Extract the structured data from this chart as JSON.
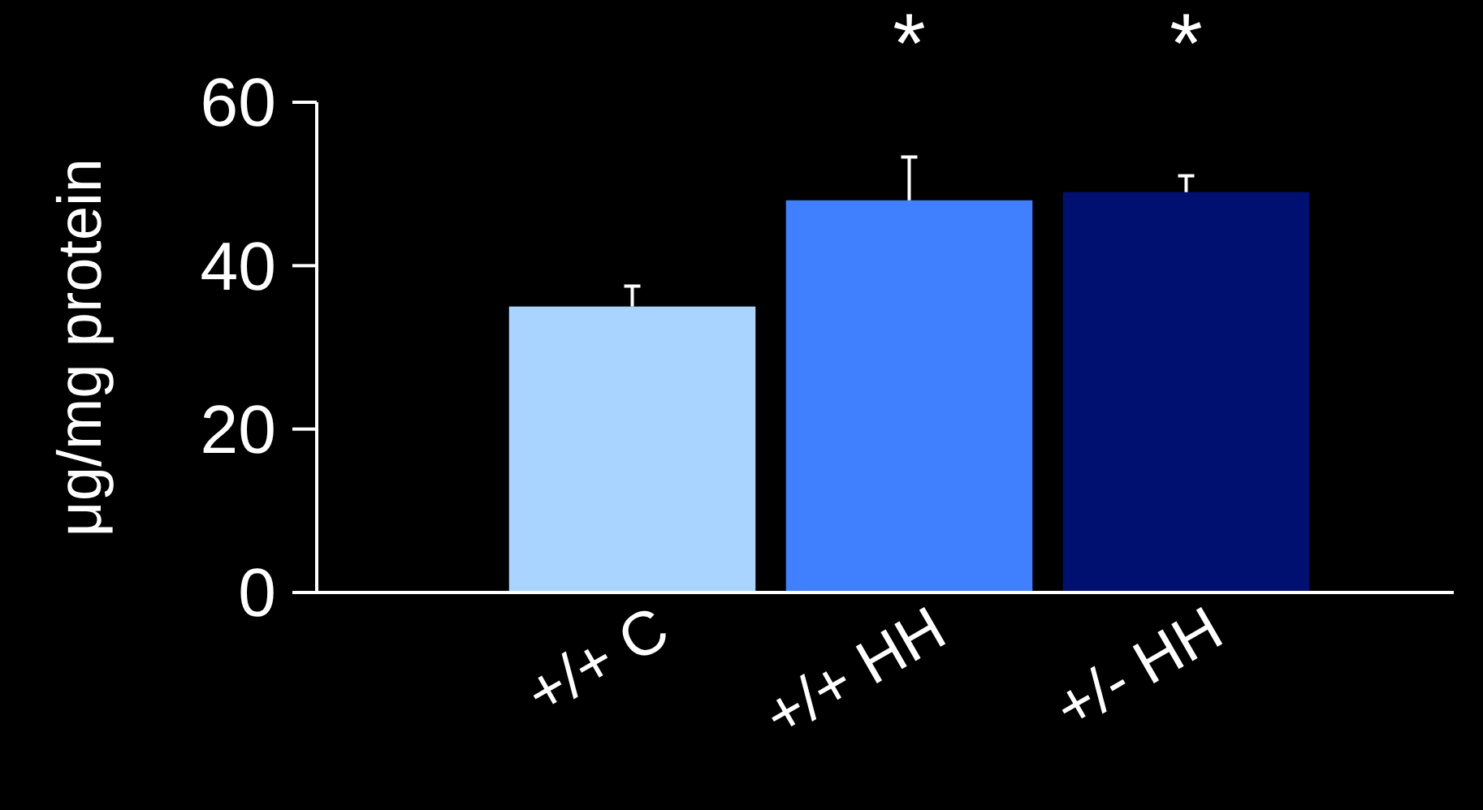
{
  "chart_data": {
    "type": "bar",
    "ylabel": "μg/mg protein",
    "categories": [
      "+/+ C",
      "+/+ HH",
      "+/- HH"
    ],
    "values": [
      35,
      48,
      49
    ],
    "colors": [
      "#a8d4ff",
      "#4080ff",
      "#001070"
    ],
    "errors": [
      [
        35,
        37.5
      ],
      [
        48,
        53.3
      ],
      [
        49,
        51
      ]
    ],
    "ylim": [
      0,
      60
    ],
    "yticks": [
      0,
      20,
      40,
      60
    ],
    "grid": false,
    "annotations": [
      "*",
      "*"
    ]
  }
}
